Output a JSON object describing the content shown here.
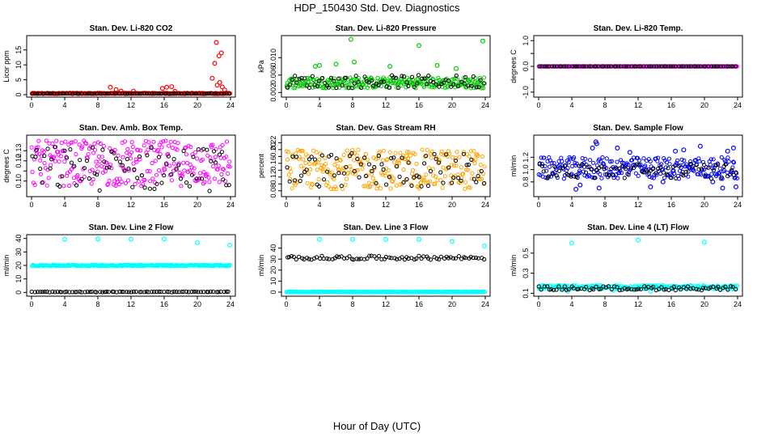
{
  "figure": {
    "title": "HDP_150430  Std. Dev. Diagnostics",
    "xlabel": "Hour of Day (UTC)"
  },
  "colors": {
    "co2": "#ff0000",
    "pressure": "#00cc00",
    "temp": "#ff00ff",
    "box_temp": "#ff00ff",
    "rh": "#ffa500",
    "sample_flow": "#0000ff",
    "line_flow": "#00ffff",
    "overlay": "#000000"
  },
  "chart_data": [
    {
      "type": "scatter",
      "title": "Stan. Dev. Li-820 CO2",
      "ylabel": "Licor ppm",
      "xlim": [
        0,
        24
      ],
      "ylim": [
        0,
        19
      ],
      "xticks": [
        0,
        4,
        8,
        12,
        16,
        20,
        24
      ],
      "yticks": [
        0,
        5,
        10,
        15
      ],
      "ytick_labels": [
        "0",
        "5",
        "10",
        "15"
      ],
      "series": [
        {
          "color": "co2",
          "band": [
            0.3,
            0.6
          ],
          "points": [
            [
              9.5,
              2.5
            ],
            [
              10.2,
              1.7
            ],
            [
              10.8,
              1.2
            ],
            [
              12.3,
              1.2
            ],
            [
              15.8,
              2.1
            ],
            [
              16.3,
              2.5
            ],
            [
              16.9,
              2.7
            ],
            [
              17.3,
              1.1
            ],
            [
              21.8,
              5.5
            ],
            [
              22.1,
              10.5
            ],
            [
              22.3,
              17.5
            ],
            [
              22.6,
              13.0
            ],
            [
              22.9,
              14.0
            ],
            [
              22.4,
              3.2
            ],
            [
              22.7,
              4.1
            ],
            [
              23.0,
              2.6
            ],
            [
              23.3,
              1.6
            ]
          ]
        },
        {
          "color": "overlay",
          "band": [
            0.3,
            0.45
          ],
          "points": []
        }
      ]
    },
    {
      "type": "scatter",
      "title": "Stan. Dev. Li-820 Pressure",
      "ylabel": "kPa",
      "xlim": [
        0,
        24
      ],
      "ylim": [
        0.0015,
        0.0145
      ],
      "xticks": [
        0,
        4,
        8,
        12,
        16,
        20,
        24
      ],
      "yticks": [
        0.002,
        0.006,
        0.01
      ],
      "ytick_labels": [
        "0.002",
        "0.006",
        "0.010"
      ],
      "series": [
        {
          "color": "pressure",
          "band": [
            0.003,
            0.0055
          ],
          "points": [
            [
              7.8,
              0.0142
            ],
            [
              16.0,
              0.0128
            ],
            [
              23.7,
              0.0138
            ],
            [
              6.0,
              0.0085
            ],
            [
              8.2,
              0.009
            ],
            [
              4.0,
              0.0082
            ],
            [
              18.2,
              0.0082
            ],
            [
              12.5,
              0.008
            ],
            [
              3.5,
              0.008
            ],
            [
              20.5,
              0.0075
            ]
          ]
        },
        {
          "color": "overlay",
          "band": [
            0.003,
            0.006
          ],
          "points": []
        }
      ]
    },
    {
      "type": "scatter",
      "title": "Stan. Dev. Li-820 Temp.",
      "ylabel": "degrees C",
      "xlim": [
        0,
        24
      ],
      "ylim": [
        -1.1,
        1.1
      ],
      "xticks": [
        0,
        4,
        8,
        12,
        16,
        20,
        24
      ],
      "yticks": [
        -1.0,
        -0.5,
        0.0,
        0.5,
        1.0
      ],
      "ytick_labels": [
        "-1.0",
        "",
        "0.0",
        "",
        "1.0"
      ],
      "series": [
        {
          "color": "temp",
          "band": [
            0.0,
            0.0
          ],
          "points": []
        },
        {
          "color": "overlay",
          "band": [
            0.0,
            0.0
          ],
          "points": []
        }
      ]
    },
    {
      "type": "scatter",
      "title": "Stan. Dev. Amb. Box Temp.",
      "ylabel": "degrees C",
      "xlim": [
        0,
        24
      ],
      "ylim": [
        0.087,
        0.143
      ],
      "xticks": [
        0,
        4,
        8,
        12,
        16,
        20,
        24
      ],
      "yticks": [
        0.1,
        0.11,
        0.12,
        0.13
      ],
      "ytick_labels": [
        "0.10",
        "",
        "0.12",
        "0.13"
      ],
      "series": [
        {
          "color": "box_temp",
          "band": [
            0.095,
            0.14
          ],
          "points": []
        },
        {
          "color": "overlay",
          "band": [
            0.09,
            0.135
          ],
          "points": []
        }
      ]
    },
    {
      "type": "scatter",
      "title": "Stan. Dev. Gas Stream RH",
      "ylabel": "percent",
      "xlim": [
        0,
        24
      ],
      "ylim": [
        0.07,
        0.235
      ],
      "xticks": [
        0,
        4,
        8,
        12,
        16,
        20,
        24
      ],
      "yticks": [
        0.08,
        0.1,
        0.12,
        0.14,
        0.16,
        0.18,
        0.2,
        0.22
      ],
      "ytick_labels": [
        "0.08",
        "",
        "0.12",
        "",
        "0.16",
        "",
        "0.20",
        "0.22"
      ],
      "series": [
        {
          "color": "rh",
          "band": [
            0.085,
            0.2
          ],
          "points": []
        },
        {
          "color": "overlay",
          "band": [
            0.09,
            0.19
          ],
          "points": []
        }
      ]
    },
    {
      "type": "scatter",
      "title": "Stan. Dev. Sample Flow",
      "ylabel": "ml/min",
      "xlim": [
        0,
        24
      ],
      "ylim": [
        0.6,
        1.52
      ],
      "xticks": [
        0,
        4,
        8,
        12,
        16,
        20,
        24
      ],
      "yticks": [
        0.8,
        1.0,
        1.2
      ],
      "ytick_labels": [
        "0.8",
        "1.0",
        "1.2"
      ],
      "series": [
        {
          "color": "sample_flow",
          "band": [
            0.85,
            1.2
          ],
          "points": [
            [
              4.5,
              0.68
            ],
            [
              5.0,
              0.75
            ],
            [
              6.5,
              1.35
            ],
            [
              6.9,
              1.45
            ],
            [
              7.0,
              1.42
            ],
            [
              7.3,
              0.7
            ],
            [
              9.5,
              1.35
            ],
            [
              13.5,
              0.72
            ],
            [
              15.0,
              0.8
            ],
            [
              16.5,
              1.3
            ],
            [
              17.5,
              1.32
            ],
            [
              19.5,
              1.38
            ],
            [
              22.2,
              0.7
            ],
            [
              22.8,
              1.3
            ],
            [
              23.5,
              1.35
            ],
            [
              23.8,
              0.72
            ],
            [
              21.0,
              0.8
            ],
            [
              11.0,
              1.28
            ]
          ]
        },
        {
          "color": "overlay",
          "band": [
            0.85,
            1.1
          ],
          "points": []
        }
      ]
    },
    {
      "type": "scatter",
      "title": "Stan. Dev. Line 2 Flow",
      "ylabel": "ml/min",
      "xlim": [
        0,
        24
      ],
      "ylim": [
        -1,
        41
      ],
      "xticks": [
        0,
        4,
        8,
        12,
        16,
        20,
        24
      ],
      "yticks": [
        0,
        10,
        20,
        30,
        40
      ],
      "ytick_labels": [
        "0",
        "10",
        "20",
        "30",
        "40"
      ],
      "series": [
        {
          "color": "line_flow",
          "band": [
            19.5,
            20.5
          ],
          "points": [
            [
              4.0,
              39.5
            ],
            [
              8.0,
              39.7
            ],
            [
              12.0,
              39.5
            ],
            [
              16.0,
              39.6
            ],
            [
              20.0,
              37.0
            ],
            [
              23.9,
              35.0
            ]
          ]
        },
        {
          "color": "overlay",
          "band": [
            0.2,
            0.6
          ],
          "points": []
        }
      ]
    },
    {
      "type": "scatter",
      "title": "Stan. Dev. Line 3 Flow",
      "ylabel": "ml/min",
      "xlim": [
        0,
        24
      ],
      "ylim": [
        -1.5,
        50
      ],
      "xticks": [
        0,
        4,
        8,
        12,
        16,
        20,
        24
      ],
      "yticks": [
        0,
        10,
        20,
        30,
        40
      ],
      "ytick_labels": [
        "0",
        "10",
        "20",
        "30",
        "40"
      ],
      "series": [
        {
          "color": "line_flow",
          "band": [
            0.0,
            0.4
          ],
          "points": [
            [
              4.0,
              48.0
            ],
            [
              8.0,
              48.0
            ],
            [
              12.0,
              48.0
            ],
            [
              16.0,
              48.0
            ],
            [
              20.0,
              46.0
            ],
            [
              23.9,
              42.0
            ]
          ]
        },
        {
          "color": "overlay",
          "band": [
            29.5,
            33.0
          ],
          "points": []
        }
      ]
    },
    {
      "type": "scatter",
      "title": "Stan. Dev. Line 4 (LT) Flow",
      "ylabel": "ml/min",
      "xlim": [
        0,
        24
      ],
      "ylim": [
        0.095,
        0.66
      ],
      "xticks": [
        0,
        4,
        8,
        12,
        16,
        20,
        24
      ],
      "yticks": [
        0.1,
        0.3,
        0.5
      ],
      "ytick_labels": [
        "0.1",
        "0.3",
        "0.5"
      ],
      "series": [
        {
          "color": "line_flow",
          "band": [
            0.14,
            0.18
          ],
          "points": [
            [
              4.0,
              0.6
            ],
            [
              12.0,
              0.63
            ],
            [
              20.0,
              0.61
            ],
            [
              3.5,
              0.12
            ],
            [
              13.5,
              0.12
            ],
            [
              9.0,
              0.13
            ]
          ]
        },
        {
          "color": "overlay",
          "band": [
            0.13,
            0.17
          ],
          "points": []
        }
      ]
    }
  ]
}
